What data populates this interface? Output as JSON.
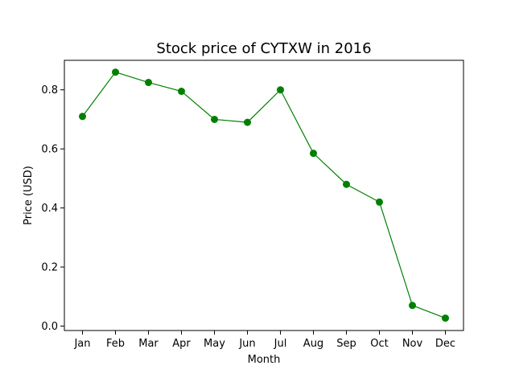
{
  "chart_data": {
    "type": "line",
    "title": "Stock price of CYTXW in 2016",
    "xlabel": "Month",
    "ylabel": "Price (USD)",
    "categories": [
      "Jan",
      "Feb",
      "Mar",
      "Apr",
      "May",
      "Jun",
      "Jul",
      "Aug",
      "Sep",
      "Oct",
      "Nov",
      "Dec"
    ],
    "series": [
      {
        "values": [
          0.71,
          0.86,
          0.825,
          0.795,
          0.7,
          0.69,
          0.8,
          0.585,
          0.48,
          0.42,
          0.07,
          0.027
        ],
        "color": "#008000",
        "marker": "circle"
      }
    ],
    "ylim": [
      -0.015,
      0.9
    ],
    "yticks": [
      "0.0",
      "0.2",
      "0.4",
      "0.6",
      "0.8"
    ],
    "grid": false,
    "legend": false
  }
}
